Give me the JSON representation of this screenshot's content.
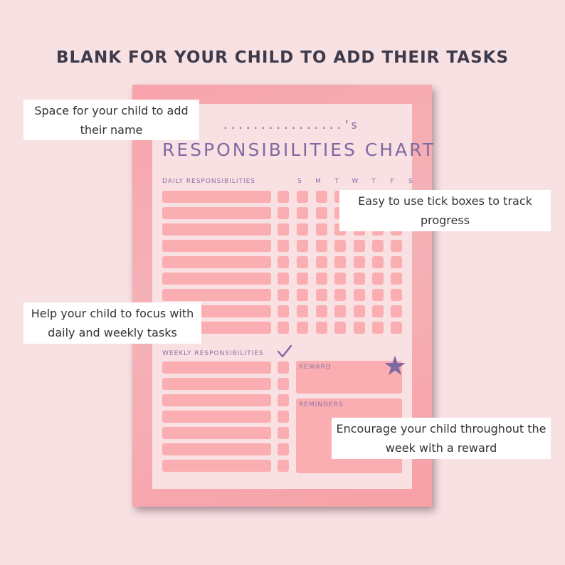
{
  "headline": "BLANK FOR YOUR CHILD TO ADD THEIR TASKS",
  "chart": {
    "name_line": "................’s",
    "title": "RESPONSIBILITIES CHART",
    "daily_label": "DAILY RESPONSIBILITIES",
    "days": [
      "S",
      "M",
      "T",
      "W",
      "T",
      "F",
      "S"
    ],
    "weekly_label": "WEEKLY RESPONSIBILITIES",
    "reward_label": "REWARD",
    "reminders_label": "REMINDERS",
    "daily_rows": 9,
    "weekly_rows": 7
  },
  "callouts": {
    "name": "Space for your child to add their name",
    "tick": "Easy to use tick boxes to track progress",
    "focus": "Help your child to focus with daily and weekly tasks",
    "reward": "Encourage your child throughout the week with a reward"
  },
  "colors": {
    "background": "#f8e1e3",
    "paper": "#f7a3ab",
    "sheet": "#f9e0e2",
    "fill": "#fbaeb1",
    "accent": "#7e6aa3",
    "headline": "#3d3a4b"
  },
  "icons": {
    "star": "star-icon",
    "check": "checkmark-icon"
  }
}
